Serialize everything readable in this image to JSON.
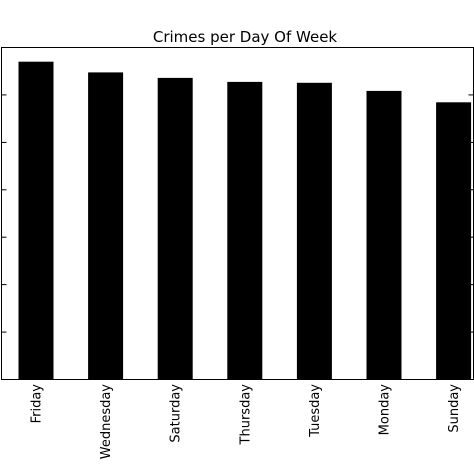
{
  "chart_data": {
    "type": "bar",
    "title": "Crimes per Day Of Week",
    "xlabel": "",
    "ylabel": "",
    "categories": [
      "Friday",
      "Wednesday",
      "Saturday",
      "Thursday",
      "Tuesday",
      "Monday",
      "Sunday"
    ],
    "values": [
      134,
      129.5,
      127.2,
      125.5,
      125.1,
      121.7,
      116.9
    ],
    "ylim": [
      0,
      140
    ],
    "bar_color": "#000000",
    "grid": false,
    "legend": "none"
  }
}
